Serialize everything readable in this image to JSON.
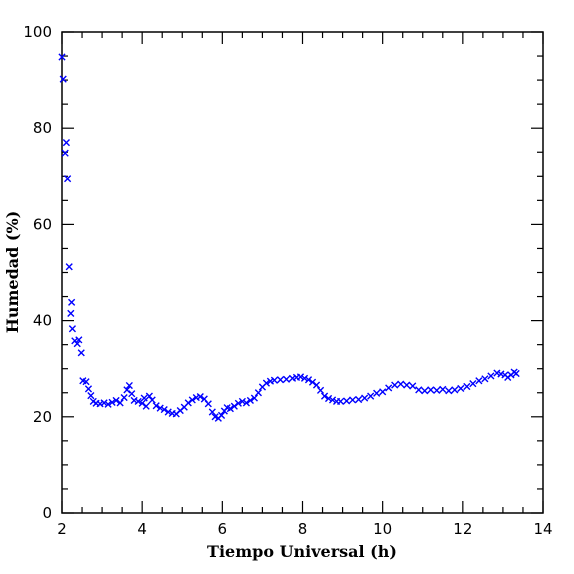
{
  "chart_data": {
    "type": "scatter",
    "xlabel": "Tiempo Universal (h)",
    "ylabel": "Humedad (%)",
    "xlim": [
      2,
      14
    ],
    "ylim": [
      0,
      100
    ],
    "x_ticks": [
      "2",
      "4",
      "6",
      "8",
      "10",
      "12",
      "14"
    ],
    "y_ticks": [
      "0",
      "20",
      "40",
      "60",
      "80",
      "100"
    ],
    "marker": "x",
    "marker_color": "#0000ff",
    "grid": false,
    "series": [
      {
        "points": [
          [
            2.0,
            94.8
          ],
          [
            2.03,
            90.2
          ],
          [
            2.08,
            74.8
          ],
          [
            2.11,
            77.0
          ],
          [
            2.14,
            69.5
          ],
          [
            2.18,
            51.2
          ],
          [
            2.22,
            41.5
          ],
          [
            2.24,
            43.8
          ],
          [
            2.26,
            38.3
          ],
          [
            2.32,
            35.8
          ],
          [
            2.38,
            35.2
          ],
          [
            2.42,
            36.0
          ],
          [
            2.48,
            33.3
          ],
          [
            2.52,
            27.5
          ],
          [
            2.6,
            27.3
          ],
          [
            2.66,
            25.8
          ],
          [
            2.72,
            24.4
          ],
          [
            2.78,
            23.2
          ],
          [
            2.85,
            22.8
          ],
          [
            2.95,
            22.7
          ],
          [
            3.05,
            22.9
          ],
          [
            3.15,
            22.6
          ],
          [
            3.25,
            23.0
          ],
          [
            3.35,
            23.4
          ],
          [
            3.45,
            22.9
          ],
          [
            3.55,
            24.0
          ],
          [
            3.62,
            25.6
          ],
          [
            3.68,
            26.5
          ],
          [
            3.74,
            24.8
          ],
          [
            3.8,
            23.4
          ],
          [
            3.9,
            23.2
          ],
          [
            4.0,
            22.8
          ],
          [
            4.05,
            23.9
          ],
          [
            4.1,
            22.2
          ],
          [
            4.18,
            24.3
          ],
          [
            4.25,
            23.5
          ],
          [
            4.35,
            22.3
          ],
          [
            4.45,
            21.8
          ],
          [
            4.55,
            21.5
          ],
          [
            4.65,
            21.0
          ],
          [
            4.75,
            20.7
          ],
          [
            4.85,
            20.6
          ],
          [
            4.95,
            21.3
          ],
          [
            5.05,
            22.0
          ],
          [
            5.15,
            22.9
          ],
          [
            5.25,
            23.5
          ],
          [
            5.35,
            24.0
          ],
          [
            5.45,
            24.2
          ],
          [
            5.55,
            23.7
          ],
          [
            5.65,
            22.7
          ],
          [
            5.75,
            21.0
          ],
          [
            5.82,
            20.0
          ],
          [
            5.9,
            19.7
          ],
          [
            5.98,
            20.3
          ],
          [
            6.05,
            21.2
          ],
          [
            6.12,
            21.9
          ],
          [
            6.2,
            21.7
          ],
          [
            6.3,
            22.2
          ],
          [
            6.4,
            22.8
          ],
          [
            6.5,
            23.2
          ],
          [
            6.6,
            22.9
          ],
          [
            6.7,
            23.4
          ],
          [
            6.8,
            23.9
          ],
          [
            6.9,
            25.0
          ],
          [
            7.0,
            26.2
          ],
          [
            7.1,
            27.0
          ],
          [
            7.2,
            27.4
          ],
          [
            7.3,
            27.6
          ],
          [
            7.45,
            27.7
          ],
          [
            7.6,
            27.8
          ],
          [
            7.75,
            28.0
          ],
          [
            7.85,
            28.2
          ],
          [
            7.95,
            28.3
          ],
          [
            8.05,
            28.0
          ],
          [
            8.15,
            27.7
          ],
          [
            8.25,
            27.2
          ],
          [
            8.35,
            26.6
          ],
          [
            8.45,
            25.5
          ],
          [
            8.55,
            24.3
          ],
          [
            8.65,
            23.8
          ],
          [
            8.75,
            23.5
          ],
          [
            8.85,
            23.2
          ],
          [
            8.95,
            23.2
          ],
          [
            9.1,
            23.3
          ],
          [
            9.25,
            23.5
          ],
          [
            9.4,
            23.6
          ],
          [
            9.55,
            23.9
          ],
          [
            9.7,
            24.3
          ],
          [
            9.85,
            24.9
          ],
          [
            10.0,
            25.2
          ],
          [
            10.15,
            26.0
          ],
          [
            10.3,
            26.6
          ],
          [
            10.45,
            26.8
          ],
          [
            10.6,
            26.6
          ],
          [
            10.75,
            26.4
          ],
          [
            10.9,
            25.6
          ],
          [
            11.05,
            25.4
          ],
          [
            11.2,
            25.6
          ],
          [
            11.35,
            25.5
          ],
          [
            11.5,
            25.7
          ],
          [
            11.65,
            25.4
          ],
          [
            11.8,
            25.6
          ],
          [
            11.95,
            25.9
          ],
          [
            12.1,
            26.3
          ],
          [
            12.25,
            26.9
          ],
          [
            12.4,
            27.5
          ],
          [
            12.55,
            27.9
          ],
          [
            12.7,
            28.5
          ],
          [
            12.85,
            29.1
          ],
          [
            12.95,
            28.9
          ],
          [
            13.05,
            28.7
          ],
          [
            13.12,
            28.2
          ],
          [
            13.2,
            28.7
          ],
          [
            13.28,
            29.3
          ],
          [
            13.33,
            29.0
          ]
        ]
      }
    ]
  }
}
